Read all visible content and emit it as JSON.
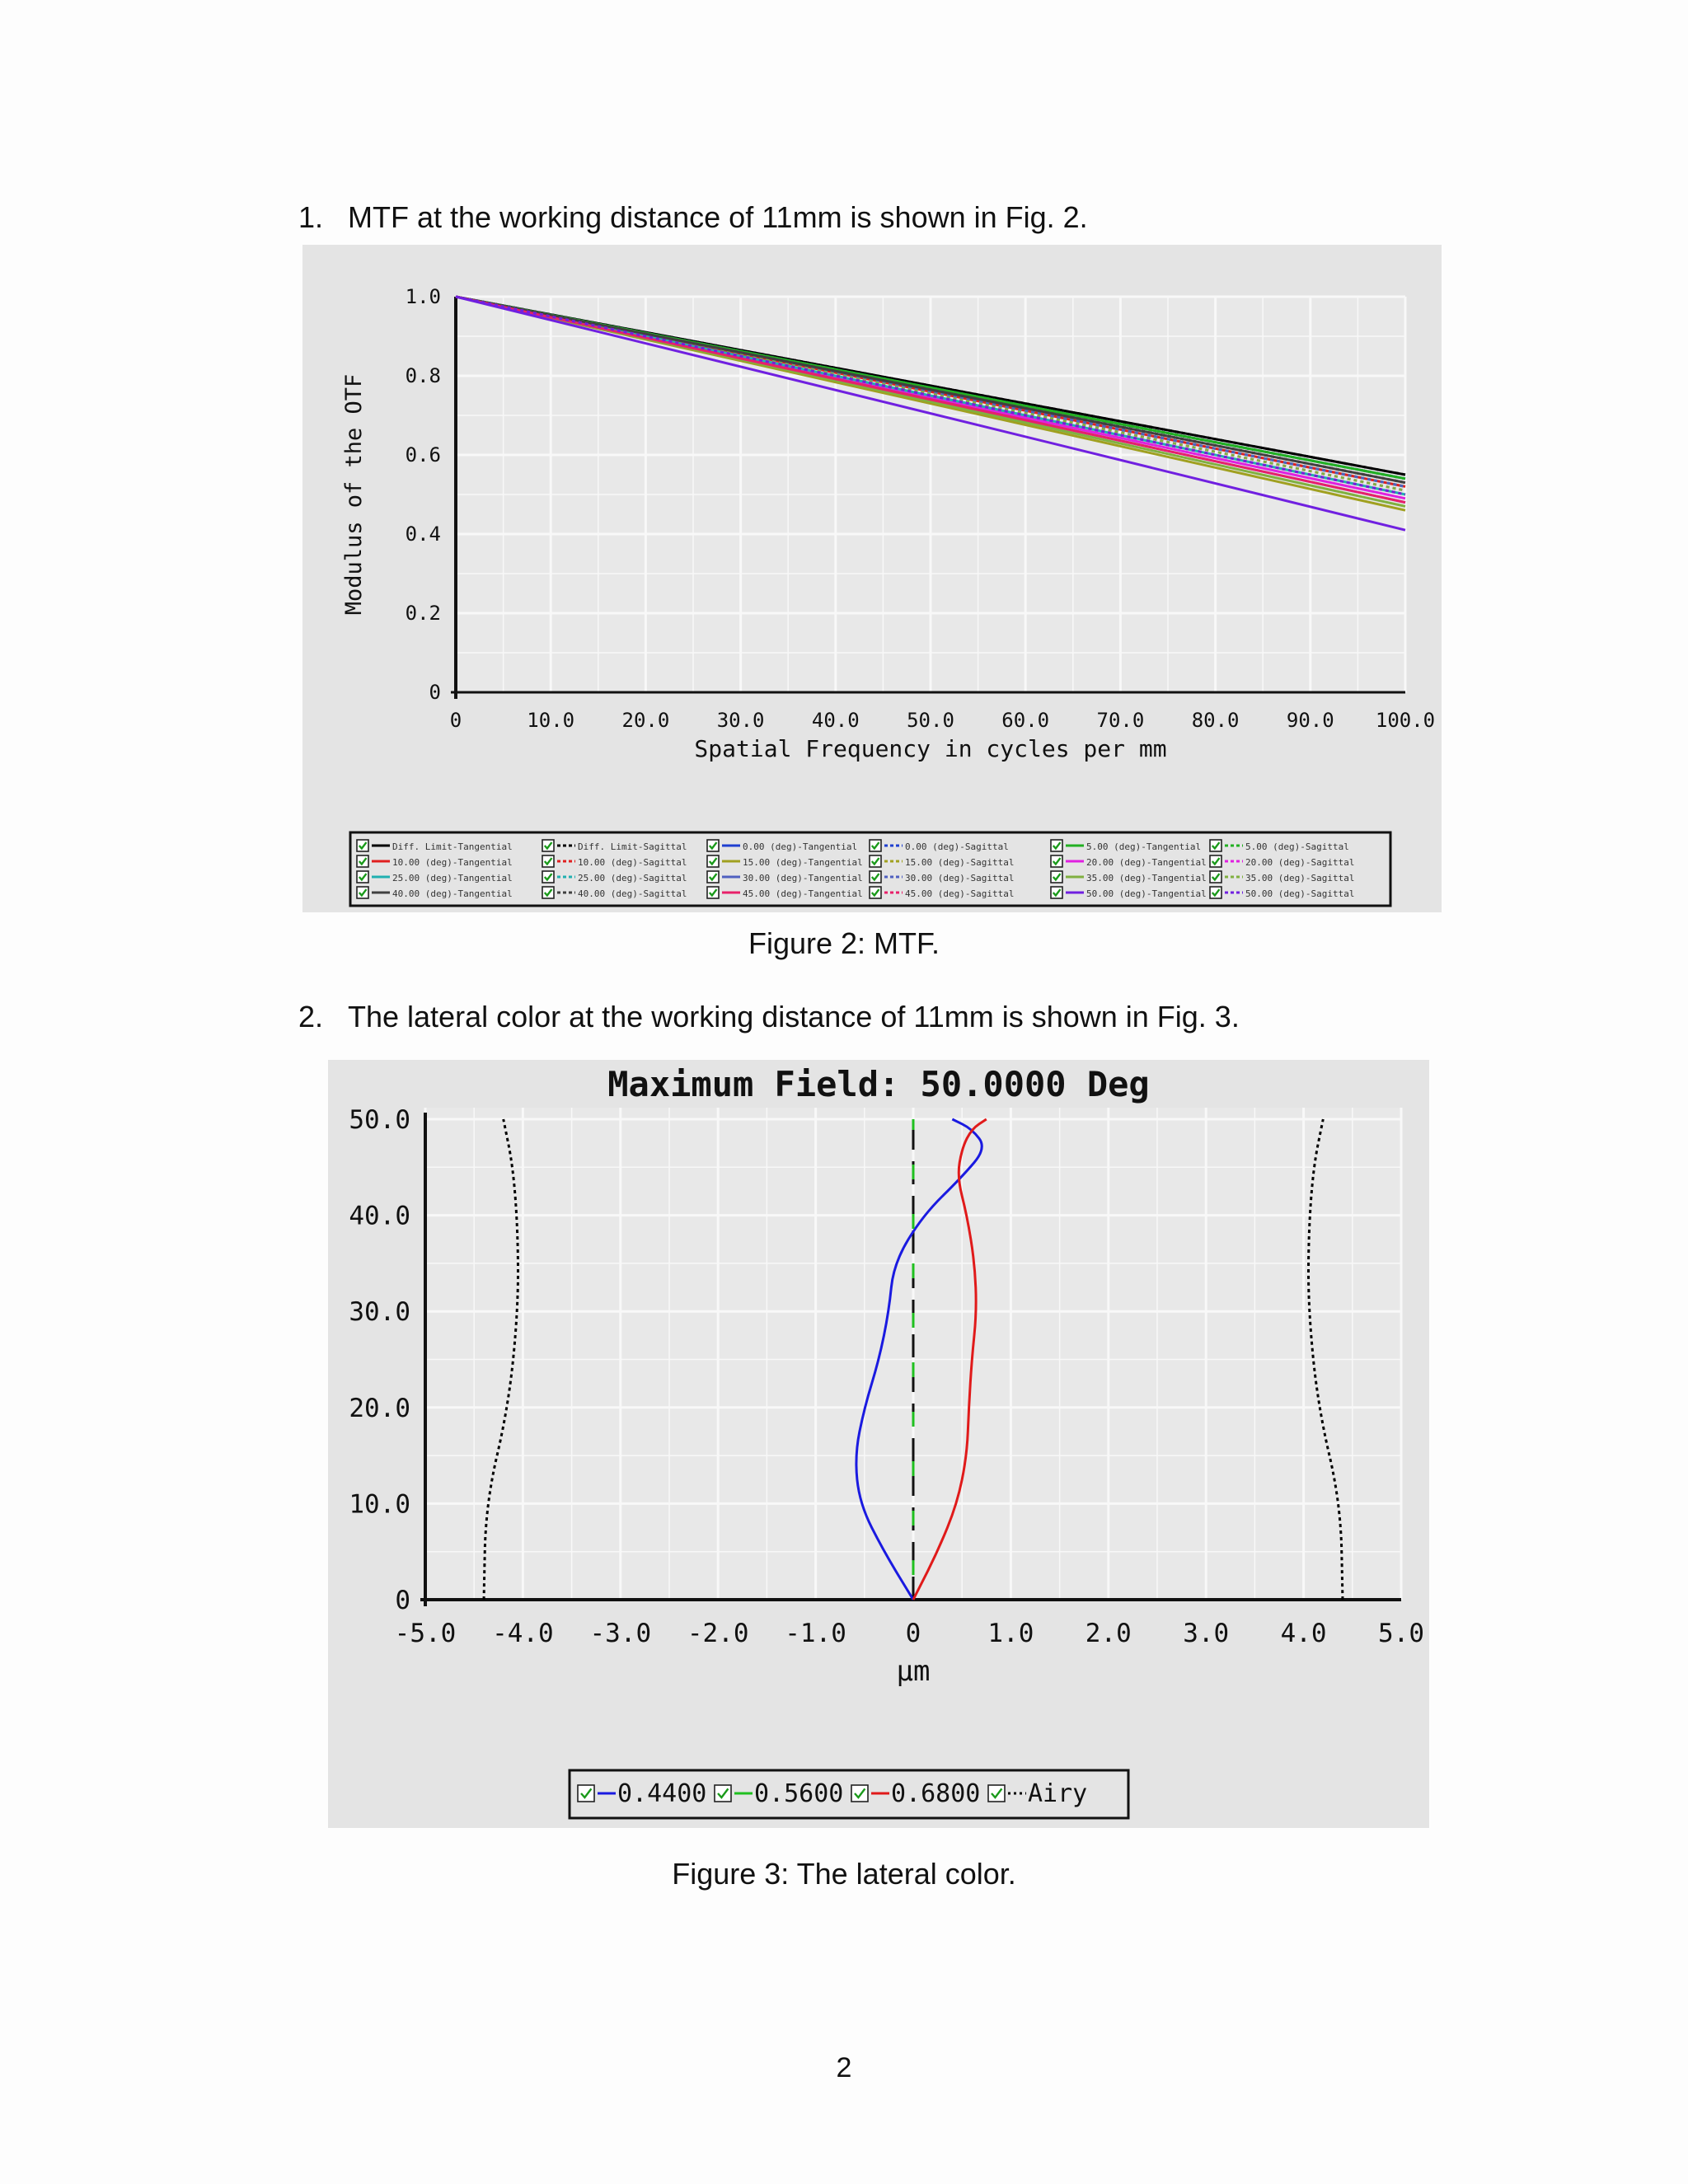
{
  "items": [
    {
      "num": "1.",
      "text": "MTF at the working distance of 11mm is shown in Fig. 2."
    },
    {
      "num": "2.",
      "text": "The lateral color at the working distance of 11mm is shown in Fig. 3."
    }
  ],
  "captions": {
    "fig2": "Figure 2: MTF.",
    "fig3": "Figure 3: The lateral color."
  },
  "page_number": "2",
  "colors": {
    "panel_bg": "#e4e4e4",
    "grid": "#f7f7f7"
  },
  "chart_data": [
    {
      "type": "line",
      "title": "",
      "xlabel": "Spatial Frequency in cycles per mm",
      "ylabel": "Modulus of the OTF",
      "xlim": [
        0,
        100
      ],
      "ylim": [
        0,
        1.0
      ],
      "xticks": [
        "0",
        "10.0",
        "20.0",
        "30.0",
        "40.0",
        "50.0",
        "60.0",
        "70.0",
        "80.0",
        "90.0",
        "100.0"
      ],
      "yticks": [
        "0",
        "0.2",
        "0.4",
        "0.6",
        "0.8",
        "1.0"
      ],
      "grid": true,
      "legend_position": "bottom",
      "x": [
        0,
        100
      ],
      "series": [
        {
          "name": "Diff. Limit-Tangential",
          "color": "#000000",
          "dash": false,
          "values": [
            1.0,
            0.55
          ]
        },
        {
          "name": "Diff. Limit-Sagittal",
          "color": "#000000",
          "dash": true,
          "values": [
            1.0,
            0.55
          ]
        },
        {
          "name": "0.00 (deg)-Tangential",
          "color": "#1f3fd0",
          "dash": false,
          "values": [
            1.0,
            0.54
          ]
        },
        {
          "name": "0.00 (deg)-Sagittal",
          "color": "#1f3fd0",
          "dash": true,
          "values": [
            1.0,
            0.54
          ]
        },
        {
          "name": "5.00 (deg)-Tangential",
          "color": "#22b022",
          "dash": false,
          "values": [
            1.0,
            0.54
          ]
        },
        {
          "name": "5.00 (deg)-Sagittal",
          "color": "#22b022",
          "dash": true,
          "values": [
            1.0,
            0.54
          ]
        },
        {
          "name": "10.00 (deg)-Tangential",
          "color": "#e02020",
          "dash": false,
          "values": [
            1.0,
            0.52
          ]
        },
        {
          "name": "10.00 (deg)-Sagittal",
          "color": "#e02020",
          "dash": true,
          "values": [
            1.0,
            0.53
          ]
        },
        {
          "name": "15.00 (deg)-Tangential",
          "color": "#a0a020",
          "dash": false,
          "values": [
            1.0,
            0.46
          ]
        },
        {
          "name": "15.00 (deg)-Sagittal",
          "color": "#a0a020",
          "dash": true,
          "values": [
            1.0,
            0.52
          ]
        },
        {
          "name": "20.00 (deg)-Tangential",
          "color": "#e020e0",
          "dash": false,
          "values": [
            1.0,
            0.49
          ]
        },
        {
          "name": "20.00 (deg)-Sagittal",
          "color": "#e020e0",
          "dash": true,
          "values": [
            1.0,
            0.51
          ]
        },
        {
          "name": "25.00 (deg)-Tangential",
          "color": "#20b0b0",
          "dash": false,
          "values": [
            1.0,
            0.5
          ]
        },
        {
          "name": "25.00 (deg)-Sagittal",
          "color": "#20b0b0",
          "dash": true,
          "values": [
            1.0,
            0.52
          ]
        },
        {
          "name": "30.00 (deg)-Tangential",
          "color": "#5060c0",
          "dash": false,
          "values": [
            1.0,
            0.48
          ]
        },
        {
          "name": "30.00 (deg)-Sagittal",
          "color": "#5060c0",
          "dash": true,
          "values": [
            1.0,
            0.52
          ]
        },
        {
          "name": "35.00 (deg)-Tangential",
          "color": "#80b040",
          "dash": false,
          "values": [
            1.0,
            0.47
          ]
        },
        {
          "name": "35.00 (deg)-Sagittal",
          "color": "#80b040",
          "dash": true,
          "values": [
            1.0,
            0.51
          ]
        },
        {
          "name": "40.00 (deg)-Tangential",
          "color": "#404040",
          "dash": false,
          "values": [
            1.0,
            0.53
          ]
        },
        {
          "name": "40.00 (deg)-Sagittal",
          "color": "#404040",
          "dash": true,
          "values": [
            1.0,
            0.53
          ]
        },
        {
          "name": "45.00 (deg)-Tangential",
          "color": "#e8206a",
          "dash": false,
          "values": [
            1.0,
            0.48
          ]
        },
        {
          "name": "45.00 (deg)-Sagittal",
          "color": "#e8206a",
          "dash": true,
          "values": [
            1.0,
            0.5
          ]
        },
        {
          "name": "50.00 (deg)-Tangential",
          "color": "#7020e0",
          "dash": false,
          "values": [
            1.0,
            0.41
          ]
        },
        {
          "name": "50.00 (deg)-Sagittal",
          "color": "#7020e0",
          "dash": true,
          "values": [
            1.0,
            0.5
          ]
        }
      ]
    },
    {
      "type": "line",
      "title": "Maximum Field: 50.0000 Deg",
      "xlabel": "µm",
      "ylabel": "",
      "xlim": [
        -5.0,
        5.0
      ],
      "ylim": [
        0,
        50.0
      ],
      "xticks": [
        "-5.0",
        "-4.0",
        "-3.0",
        "-2.0",
        "-1.0",
        "0",
        "1.0",
        "2.0",
        "3.0",
        "4.0",
        "5.0"
      ],
      "yticks": [
        "0",
        "10.0",
        "20.0",
        "30.0",
        "40.0",
        "50.0"
      ],
      "grid": true,
      "legend_position": "bottom",
      "series": [
        {
          "name": "0.4400",
          "color": "#1a1ae0",
          "dash": false,
          "points": [
            [
              0,
              0
            ],
            [
              -0.3,
              5
            ],
            [
              -0.55,
              10
            ],
            [
              -0.6,
              15
            ],
            [
              -0.5,
              20
            ],
            [
              -0.35,
              25
            ],
            [
              -0.25,
              30
            ],
            [
              -0.2,
              35
            ],
            [
              0.1,
              40
            ],
            [
              0.5,
              44
            ],
            [
              0.75,
              47
            ],
            [
              0.6,
              49
            ],
            [
              0.4,
              50
            ]
          ]
        },
        {
          "name": "0.5600",
          "color": "#20c020",
          "dash": false,
          "points": [
            [
              0,
              0
            ],
            [
              0,
              10
            ],
            [
              0,
              20
            ],
            [
              0,
              30
            ],
            [
              0,
              40
            ],
            [
              0,
              50
            ]
          ]
        },
        {
          "name": "0.6800",
          "color": "#e01a1a",
          "dash": false,
          "points": [
            [
              0,
              0
            ],
            [
              0.25,
              5
            ],
            [
              0.45,
              10
            ],
            [
              0.55,
              15
            ],
            [
              0.57,
              20
            ],
            [
              0.6,
              25
            ],
            [
              0.65,
              30
            ],
            [
              0.63,
              35
            ],
            [
              0.55,
              40
            ],
            [
              0.45,
              44
            ],
            [
              0.5,
              47
            ],
            [
              0.6,
              49
            ],
            [
              0.75,
              50
            ]
          ]
        },
        {
          "name": "Airy",
          "color": "#000000",
          "dash": true,
          "points": [
            [
              4.4,
              0
            ],
            [
              4.38,
              10
            ],
            [
              4.15,
              20
            ],
            [
              4.05,
              30
            ],
            [
              4.05,
              38
            ],
            [
              4.1,
              45
            ],
            [
              4.2,
              50
            ]
          ]
        }
      ]
    }
  ]
}
